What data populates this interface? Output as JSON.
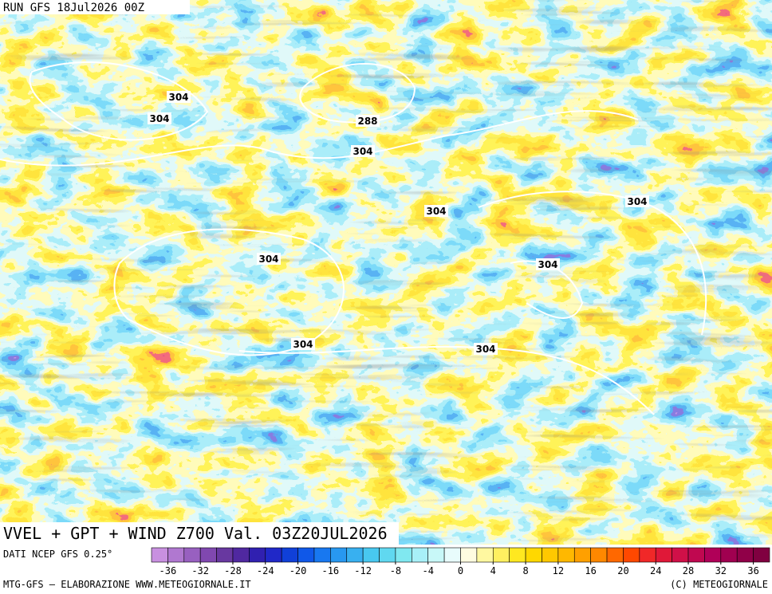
{
  "header": {
    "run": "RUN GFS 18Jul2026 00Z"
  },
  "contour_labels": [
    "304",
    "304",
    "288",
    "304",
    "304",
    "304",
    "304",
    "304",
    "304",
    "304"
  ],
  "footer": {
    "title": "VVEL + GPT + WIND Z700 Val. 03Z20JUL2026",
    "source": "DATI NCEP GFS 0.25°",
    "credit_left": "MTG-GFS — ELABORAZIONE WWW.METEOGIORNALE.IT",
    "credit_right": "(C) METEOGIORNALE"
  },
  "colorbar": {
    "range": [
      -38,
      38
    ],
    "ticks": [
      -36,
      -32,
      -28,
      -24,
      -20,
      -16,
      -12,
      -8,
      -4,
      0,
      4,
      8,
      12,
      16,
      20,
      24,
      28,
      32,
      36
    ],
    "colors": [
      "#c890e0",
      "#b078d0",
      "#9860c0",
      "#8048b0",
      "#6838a0",
      "#5028a0",
      "#3020b0",
      "#2028c8",
      "#1040d8",
      "#1058e8",
      "#1878f0",
      "#2898f0",
      "#38b0f0",
      "#48c8f0",
      "#60d8f0",
      "#80e8f0",
      "#a8f0f8",
      "#c8f8f8",
      "#e8fcfc",
      "#fffce0",
      "#fff8a0",
      "#fff060",
      "#ffe820",
      "#ffd800",
      "#ffc800",
      "#ffb800",
      "#ffa000",
      "#ff8800",
      "#ff6800",
      "#ff4800",
      "#f02828",
      "#e01838",
      "#d01048",
      "#c00850",
      "#b00058",
      "#a00050",
      "#900048",
      "#800040"
    ]
  }
}
